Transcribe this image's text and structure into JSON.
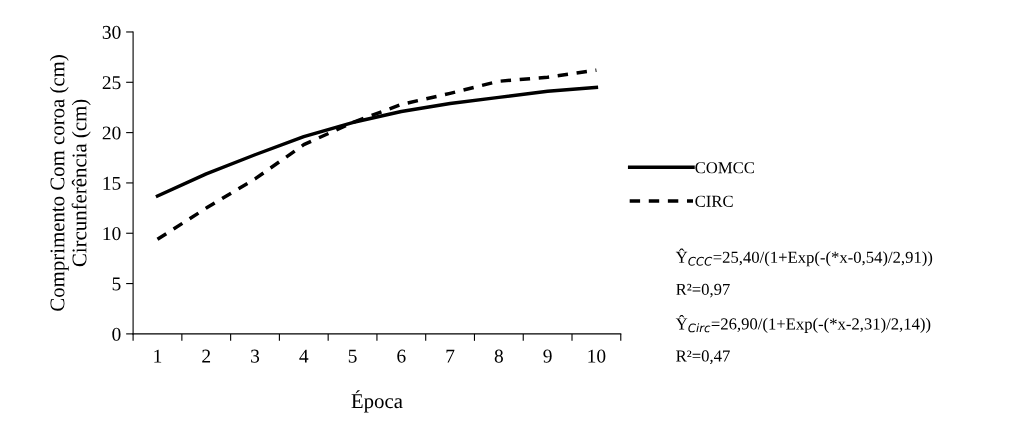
{
  "chart_data": {
    "type": "line",
    "xlabel": "Época",
    "ylabel": "Comprimento Com coroa (cm)\nCircunferência (cm)",
    "categories": [
      "1",
      "2",
      "3",
      "4",
      "5",
      "6",
      "7",
      "8",
      "9",
      "10"
    ],
    "series": [
      {
        "name": "COMCC",
        "color": "#000000",
        "line_style": "solid",
        "values": [
          13.7,
          15.9,
          17.8,
          19.6,
          21.0,
          22.1,
          22.9,
          23.5,
          24.1,
          24.5
        ]
      },
      {
        "name": "CIRC",
        "color": "#000000",
        "line_style": "dashed",
        "values": [
          9.4,
          12.5,
          15.4,
          18.8,
          21.0,
          22.8,
          23.9,
          25.1,
          25.5,
          26.2
        ]
      }
    ],
    "ylim": [
      0,
      30
    ],
    "yticks": [
      0,
      5,
      10,
      15,
      20,
      25,
      30
    ],
    "grid": false,
    "legend": "right",
    "marker": "none",
    "annotations": [
      "Ŷ$_{CCC}$=25,40/(1+Exp(-(*x-0,54)/2,91))",
      "R²=0,97",
      "Ŷ$_{Circ}$=26,90/(1+Exp(-(*x-2,31)/2,14))",
      "R²=0,47"
    ]
  }
}
